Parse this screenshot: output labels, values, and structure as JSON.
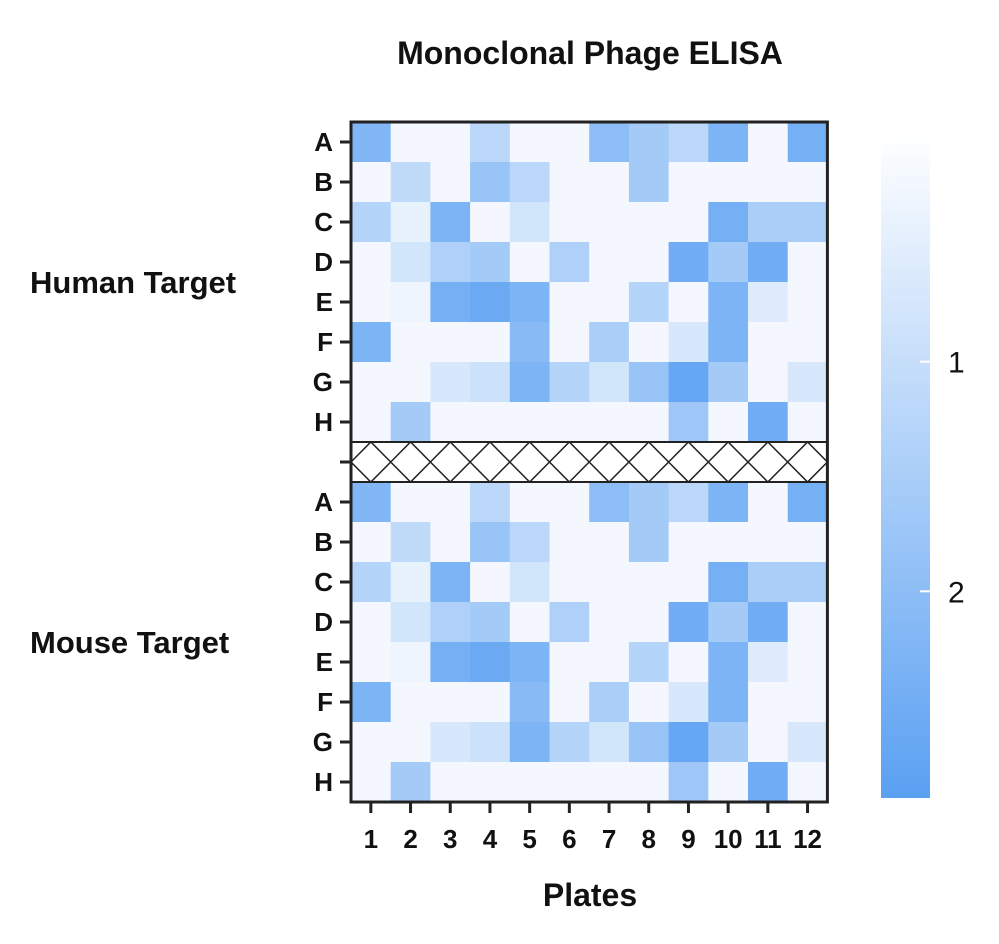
{
  "chart_data": {
    "type": "heatmap",
    "title": "Monoclonal Phage ELISA",
    "xlabel": "Plates",
    "x_categories": [
      "1",
      "2",
      "3",
      "4",
      "5",
      "6",
      "7",
      "8",
      "9",
      "10",
      "11",
      "12"
    ],
    "row_labels": [
      "A",
      "B",
      "C",
      "D",
      "E",
      "F",
      "G",
      "H"
    ],
    "groups": [
      {
        "name": "Human Target",
        "values": [
          [
            2.2,
            0.2,
            0.2,
            1.2,
            0.2,
            0.2,
            2.0,
            1.6,
            1.2,
            2.3,
            0.2,
            2.4
          ],
          [
            0.2,
            1.1,
            0.2,
            1.8,
            1.2,
            0.2,
            0.2,
            1.6,
            0.2,
            0.2,
            0.2,
            0.2
          ],
          [
            1.3,
            0.4,
            2.3,
            0.2,
            0.8,
            0.2,
            0.2,
            0.2,
            0.2,
            2.4,
            1.5,
            1.5
          ],
          [
            0.2,
            0.8,
            1.4,
            1.6,
            0.2,
            1.4,
            0.2,
            0.2,
            2.5,
            1.6,
            2.5,
            0.2
          ],
          [
            0.2,
            0.3,
            2.4,
            2.6,
            2.3,
            0.2,
            0.2,
            1.3,
            0.2,
            2.3,
            0.6,
            0.2
          ],
          [
            2.3,
            0.2,
            0.2,
            0.2,
            2.1,
            0.2,
            1.5,
            0.2,
            0.7,
            2.3,
            0.2,
            0.2
          ],
          [
            0.2,
            0.2,
            0.7,
            0.9,
            2.3,
            1.3,
            0.8,
            1.8,
            2.7,
            1.6,
            0.2,
            0.7
          ],
          [
            0.2,
            1.6,
            0.2,
            0.2,
            0.2,
            0.2,
            0.2,
            0.2,
            1.7,
            0.2,
            2.5,
            0.2
          ]
        ]
      },
      {
        "name": "Mouse Target",
        "values": [
          [
            2.2,
            0.2,
            0.2,
            1.2,
            0.2,
            0.2,
            2.0,
            1.6,
            1.2,
            2.3,
            0.2,
            2.4
          ],
          [
            0.2,
            1.1,
            0.2,
            1.8,
            1.2,
            0.2,
            0.2,
            1.6,
            0.2,
            0.2,
            0.2,
            0.2
          ],
          [
            1.3,
            0.4,
            2.3,
            0.2,
            0.8,
            0.2,
            0.2,
            0.2,
            0.2,
            2.4,
            1.5,
            1.5
          ],
          [
            0.2,
            0.8,
            1.4,
            1.6,
            0.2,
            1.4,
            0.2,
            0.2,
            2.5,
            1.6,
            2.5,
            0.2
          ],
          [
            0.2,
            0.3,
            2.4,
            2.6,
            2.3,
            0.2,
            0.2,
            1.3,
            0.2,
            2.3,
            0.6,
            0.2
          ],
          [
            2.3,
            0.2,
            0.2,
            0.2,
            2.1,
            0.2,
            1.5,
            0.2,
            0.7,
            2.3,
            0.2,
            0.2
          ],
          [
            0.2,
            0.2,
            0.7,
            0.9,
            2.3,
            1.3,
            0.8,
            1.8,
            2.7,
            1.6,
            0.2,
            0.7
          ],
          [
            0.2,
            1.6,
            0.2,
            0.2,
            0.2,
            0.2,
            0.2,
            0.2,
            1.7,
            0.2,
            2.5,
            0.2
          ]
        ]
      }
    ],
    "separator_row": "crosshatch (no data)",
    "colorbar": {
      "ticks": [
        "1",
        "2"
      ],
      "tick_values": [
        1,
        2
      ],
      "range": [
        0,
        2.9
      ],
      "orientation": "vertical",
      "low_color": "#ffffff",
      "high_color": "#5aa0f2"
    }
  }
}
